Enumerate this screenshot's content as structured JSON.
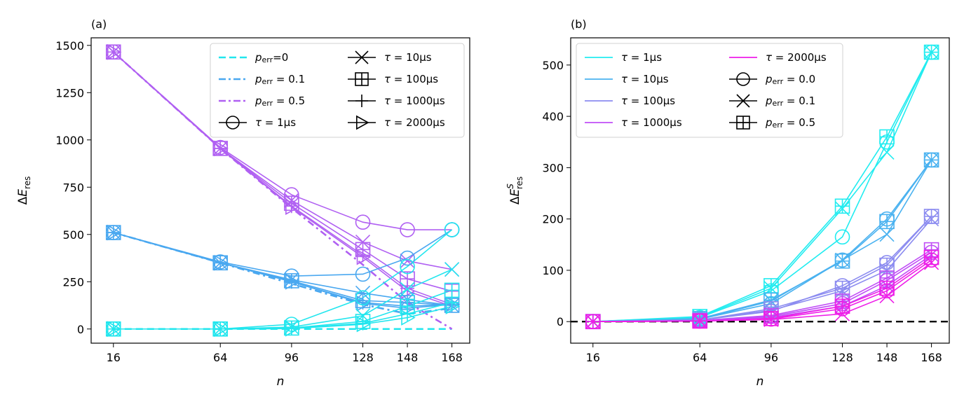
{
  "colors": {
    "perr_0": "#22e6ee",
    "perr_01": "#4aa8f0",
    "perr_05": "#b060f2",
    "tau_1": "#22ecf0",
    "tau_10": "#4ab2f0",
    "tau_100": "#8c8cf0",
    "tau_1000": "#c04ef6",
    "tau_2000": "#ee1ee8",
    "black": "#000000"
  },
  "chart_data": [
    {
      "type": "line",
      "panel_label": "(a)",
      "xlabel": "n",
      "ylabel": "ΔE_res",
      "x": [
        16,
        64,
        96,
        128,
        148,
        168
      ],
      "xticks": [
        "16",
        "64",
        "96",
        "128",
        "148",
        "168"
      ],
      "xlim": [
        6,
        176
      ],
      "ylim": [
        -75,
        1540
      ],
      "yticks": [
        0,
        250,
        500,
        750,
        1000,
        1250,
        1500
      ],
      "ytick_labels": [
        "0",
        "250",
        "500",
        "750",
        "1000",
        "1250",
        "1500"
      ],
      "legend": {
        "position": "top-right",
        "entries": [
          {
            "label": "p_err=0",
            "kind": "dashed",
            "color_key": "perr_0"
          },
          {
            "label": "p_err = 0.1",
            "kind": "dashdot",
            "color_key": "perr_01"
          },
          {
            "label": "p_err = 0.5",
            "kind": "dashdot",
            "color_key": "perr_05"
          },
          {
            "label": "τ = 1μs",
            "kind": "marker",
            "marker": "circle"
          },
          {
            "label": "τ = 10μs",
            "kind": "marker",
            "marker": "x"
          },
          {
            "label": "τ = 100μs",
            "kind": "marker",
            "marker": "square"
          },
          {
            "label": "τ = 1000μs",
            "kind": "marker",
            "marker": "vline"
          },
          {
            "label": "τ = 2000μs",
            "kind": "marker",
            "marker": "triangle-right"
          }
        ]
      },
      "reference_lines": [
        {
          "name": "perr-0-ideal",
          "style": "dashed",
          "color_key": "perr_0",
          "values": [
            0,
            0,
            0,
            0,
            0,
            0
          ]
        },
        {
          "name": "perr-01-ideal",
          "style": "dashdot",
          "color_key": "perr_01",
          "values": [
            510,
            350,
            240,
            130,
            80,
            110
          ]
        },
        {
          "name": "perr-05-ideal",
          "style": "dashdot",
          "color_key": "perr_05",
          "values": [
            1465,
            955,
            640,
            340,
            140,
            0
          ]
        }
      ],
      "series": [
        {
          "name": "perr 0.5, τ=1μs",
          "color_key": "perr_05",
          "marker": "circle",
          "values": [
            1465,
            960,
            710,
            565,
            525,
            525
          ]
        },
        {
          "name": "perr 0.5, τ=10μs",
          "color_key": "perr_05",
          "marker": "x",
          "values": [
            1465,
            955,
            680,
            460,
            360,
            315
          ]
        },
        {
          "name": "perr 0.5, τ=100μs",
          "color_key": "perr_05",
          "marker": "square",
          "values": [
            1465,
            955,
            665,
            420,
            265,
            200
          ]
        },
        {
          "name": "perr 0.5, τ=1000μs",
          "color_key": "perr_05",
          "marker": "vline",
          "values": [
            1465,
            955,
            650,
            390,
            215,
            130
          ]
        },
        {
          "name": "perr 0.5, τ=2000μs",
          "color_key": "perr_05",
          "marker": "triangle-right",
          "values": [
            1465,
            955,
            645,
            380,
            200,
            120
          ]
        },
        {
          "name": "perr 0.1, τ=1μs",
          "color_key": "perr_01",
          "marker": "circle",
          "values": [
            510,
            355,
            280,
            290,
            375,
            525
          ]
        },
        {
          "name": "perr 0.1, τ=10μs",
          "color_key": "perr_01",
          "marker": "x",
          "values": [
            510,
            350,
            260,
            190,
            155,
            125
          ]
        },
        {
          "name": "perr 0.1, τ=100μs",
          "color_key": "perr_01",
          "marker": "square",
          "values": [
            510,
            350,
            255,
            150,
            140,
            125
          ]
        },
        {
          "name": "perr 0.1, τ=1000μs",
          "color_key": "perr_01",
          "marker": "vline",
          "values": [
            510,
            350,
            250,
            140,
            120,
            130
          ]
        },
        {
          "name": "perr 0.1, τ=2000μs",
          "color_key": "perr_01",
          "marker": "triangle-right",
          "values": [
            510,
            350,
            250,
            135,
            110,
            130
          ]
        },
        {
          "name": "perr 0, τ=1μs",
          "color_key": "perr_0",
          "marker": "circle",
          "values": [
            0,
            0,
            25,
            165,
            330,
            525
          ]
        },
        {
          "name": "perr 0, τ=10μs",
          "color_key": "perr_0",
          "marker": "x",
          "values": [
            0,
            0,
            10,
            70,
            210,
            315
          ]
        },
        {
          "name": "perr 0, τ=100μs",
          "color_key": "perr_0",
          "marker": "square",
          "values": [
            0,
            0,
            5,
            40,
            120,
            205
          ]
        },
        {
          "name": "perr 0, τ=1000μs",
          "color_key": "perr_0",
          "marker": "vline",
          "values": [
            0,
            0,
            3,
            30,
            80,
            140
          ]
        },
        {
          "name": "perr 0, τ=2000μs",
          "color_key": "perr_0",
          "marker": "triangle-right",
          "values": [
            0,
            0,
            2,
            25,
            60,
            120
          ]
        }
      ]
    },
    {
      "type": "line",
      "panel_label": "(b)",
      "xlabel": "n",
      "ylabel": "ΔE^S_res",
      "x": [
        16,
        64,
        96,
        128,
        148,
        168
      ],
      "xticks": [
        "16",
        "64",
        "96",
        "128",
        "148",
        "168"
      ],
      "xlim": [
        6,
        176
      ],
      "ylim": [
        -42,
        553
      ],
      "yticks": [
        0,
        100,
        200,
        300,
        400,
        500
      ],
      "ytick_labels": [
        "0",
        "100",
        "200",
        "300",
        "400",
        "500"
      ],
      "reference_lines": [
        {
          "name": "zero-line",
          "style": "dashed",
          "color_key": "black",
          "values": [
            0,
            0,
            0,
            0,
            0,
            0
          ]
        }
      ],
      "legend": {
        "position": "top-left",
        "entries": [
          {
            "label": "τ = 1μs",
            "kind": "line",
            "color_key": "tau_1"
          },
          {
            "label": "τ = 10μs",
            "kind": "line",
            "color_key": "tau_10"
          },
          {
            "label": "τ = 100μs",
            "kind": "line",
            "color_key": "tau_100"
          },
          {
            "label": "τ = 1000μs",
            "kind": "line",
            "color_key": "tau_1000"
          },
          {
            "label": "τ = 2000μs",
            "kind": "line",
            "color_key": "tau_2000"
          },
          {
            "label": "p_err = 0.0",
            "kind": "marker",
            "marker": "circle"
          },
          {
            "label": "p_err = 0.1",
            "kind": "marker",
            "marker": "x"
          },
          {
            "label": "p_err = 0.5",
            "kind": "marker",
            "marker": "square"
          }
        ]
      },
      "series": [
        {
          "name": "τ=1μs, perr 0.0",
          "color_key": "tau_1",
          "marker": "circle",
          "values": [
            0,
            8,
            60,
            165,
            350,
            525
          ]
        },
        {
          "name": "τ=1μs, perr 0.1",
          "color_key": "tau_1",
          "marker": "x",
          "values": [
            0,
            9,
            65,
            220,
            330,
            525
          ]
        },
        {
          "name": "τ=1μs, perr 0.5",
          "color_key": "tau_1",
          "marker": "square",
          "values": [
            0,
            10,
            70,
            225,
            360,
            525
          ]
        },
        {
          "name": "τ=10μs, perr 0.0",
          "color_key": "tau_10",
          "marker": "circle",
          "values": [
            0,
            5,
            35,
            120,
            200,
            315
          ]
        },
        {
          "name": "τ=10μs, perr 0.1",
          "color_key": "tau_10",
          "marker": "x",
          "values": [
            0,
            5,
            40,
            120,
            170,
            315
          ]
        },
        {
          "name": "τ=10μs, perr 0.5",
          "color_key": "tau_10",
          "marker": "square",
          "values": [
            0,
            6,
            42,
            118,
            195,
            315
          ]
        },
        {
          "name": "τ=100μs, perr 0.0",
          "color_key": "tau_100",
          "marker": "circle",
          "values": [
            0,
            3,
            20,
            70,
            115,
            205
          ]
        },
        {
          "name": "τ=100μs, perr 0.1",
          "color_key": "tau_100",
          "marker": "x",
          "values": [
            0,
            3,
            22,
            60,
            100,
            200
          ]
        },
        {
          "name": "τ=100μs, perr 0.5",
          "color_key": "tau_100",
          "marker": "square",
          "values": [
            0,
            3,
            25,
            65,
            110,
            205
          ]
        },
        {
          "name": "τ=1000μs, perr 0.0",
          "color_key": "tau_1000",
          "marker": "circle",
          "values": [
            0,
            2,
            10,
            35,
            80,
            135
          ]
        },
        {
          "name": "τ=1000μs, perr 0.1",
          "color_key": "tau_1000",
          "marker": "x",
          "values": [
            0,
            2,
            8,
            30,
            70,
            130
          ]
        },
        {
          "name": "τ=1000μs, perr 0.5",
          "color_key": "tau_1000",
          "marker": "square",
          "values": [
            0,
            2,
            12,
            40,
            85,
            140
          ]
        },
        {
          "name": "τ=2000μs, perr 0.0",
          "color_key": "tau_2000",
          "marker": "circle",
          "values": [
            0,
            1,
            5,
            25,
            60,
            120
          ]
        },
        {
          "name": "τ=2000μs, perr 0.1",
          "color_key": "tau_2000",
          "marker": "x",
          "values": [
            0,
            1,
            4,
            15,
            50,
            115
          ]
        },
        {
          "name": "τ=2000μs, perr 0.5",
          "color_key": "tau_2000",
          "marker": "square",
          "values": [
            0,
            1,
            6,
            30,
            65,
            125
          ]
        }
      ]
    }
  ]
}
